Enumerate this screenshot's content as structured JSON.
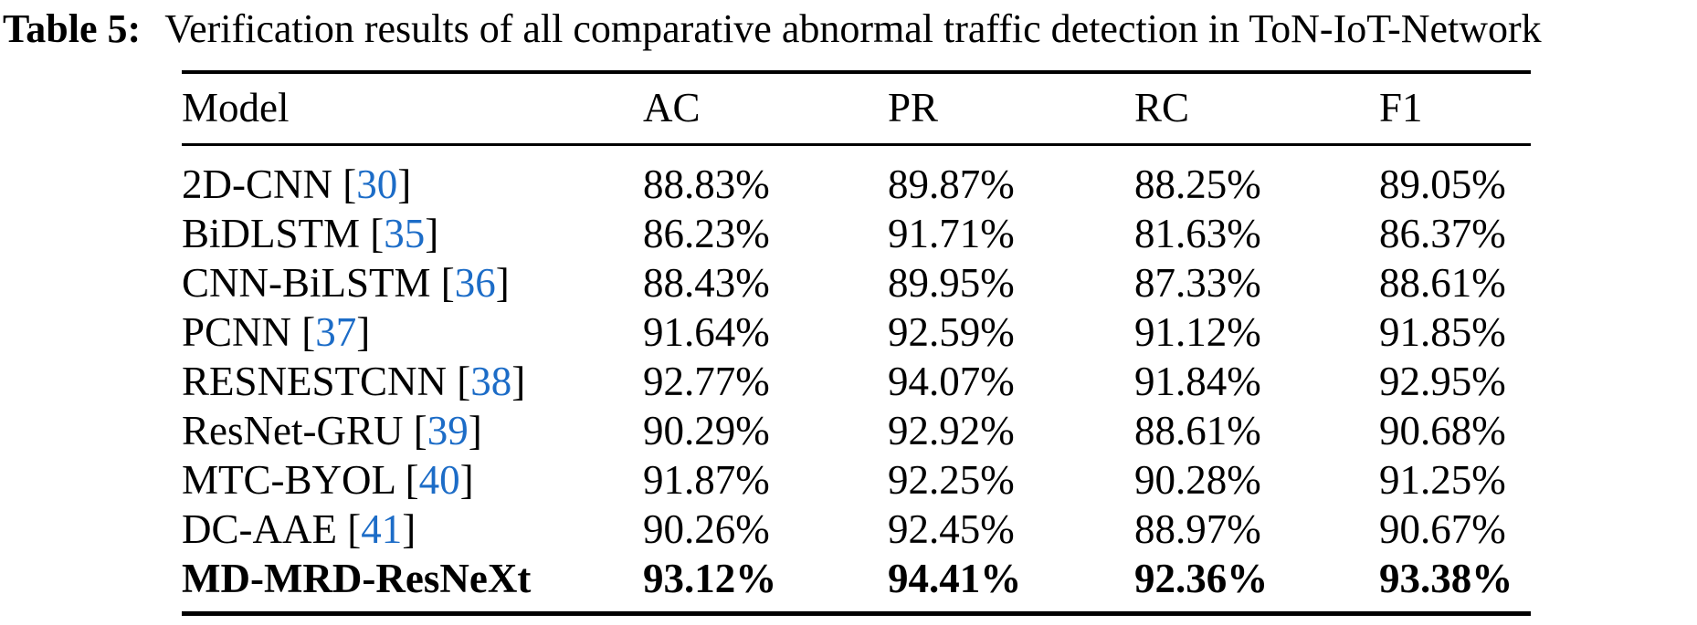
{
  "caption": {
    "label": "Table 5:",
    "text": "Verification results of all comparative abnormal traffic detection in ToN-IoT-Network"
  },
  "table": {
    "columns": [
      "Model",
      "AC",
      "PR",
      "RC",
      "F1"
    ],
    "rows": [
      {
        "model": "2D-CNN",
        "citation": "30",
        "values": [
          "88.83%",
          "89.87%",
          "88.25%",
          "89.05%"
        ],
        "bold": false
      },
      {
        "model": "BiDLSTM",
        "citation": "35",
        "values": [
          "86.23%",
          "91.71%",
          "81.63%",
          "86.37%"
        ],
        "bold": false
      },
      {
        "model": "CNN-BiLSTM",
        "citation": "36",
        "values": [
          "88.43%",
          "89.95%",
          "87.33%",
          "88.61%"
        ],
        "bold": false
      },
      {
        "model": "PCNN",
        "citation": "37",
        "values": [
          "91.64%",
          "92.59%",
          "91.12%",
          "91.85%"
        ],
        "bold": false
      },
      {
        "model": "RESNESTCNN",
        "citation": "38",
        "values": [
          "92.77%",
          "94.07%",
          "91.84%",
          "92.95%"
        ],
        "bold": false
      },
      {
        "model": "ResNet-GRU",
        "citation": "39",
        "values": [
          "90.29%",
          "92.92%",
          "88.61%",
          "90.68%"
        ],
        "bold": false
      },
      {
        "model": "MTC-BYOL",
        "citation": "40",
        "values": [
          "91.87%",
          "92.25%",
          "90.28%",
          "91.25%"
        ],
        "bold": false
      },
      {
        "model": "DC-AAE",
        "citation": "41",
        "values": [
          "90.26%",
          "92.45%",
          "88.97%",
          "90.67%"
        ],
        "bold": false
      },
      {
        "model": "MD-MRD-ResNeXt",
        "citation": null,
        "values": [
          "93.12%",
          "94.41%",
          "92.36%",
          "93.38%"
        ],
        "bold": true
      }
    ]
  },
  "colors": {
    "citation_blue": "#1c6cc7",
    "text": "#000000",
    "background": "#ffffff"
  }
}
